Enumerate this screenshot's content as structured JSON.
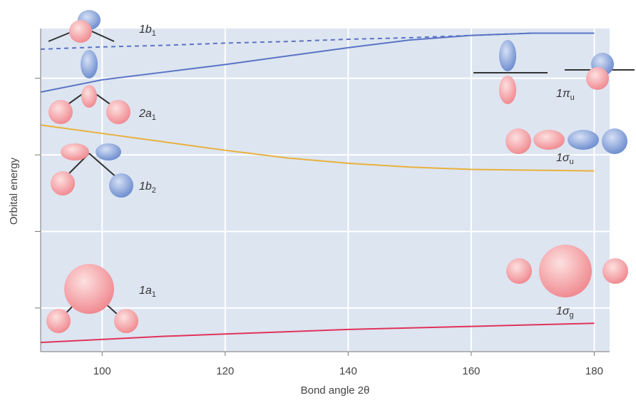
{
  "chart_data": {
    "type": "line",
    "x_label": "Bond angle 2θ",
    "y_label": "Orbital energy",
    "x": [
      90,
      100,
      110,
      120,
      130,
      140,
      150,
      160,
      170,
      180
    ],
    "xlim": [
      90,
      182.5
    ],
    "xticks": [
      100,
      120,
      140,
      160,
      180
    ],
    "ylim": [
      0.43,
      4.65
    ],
    "yticks": [
      1,
      2,
      3,
      4
    ],
    "grid": true,
    "series": [
      {
        "color": "#5b74c4",
        "dash": false,
        "values": [
          3.82,
          3.98,
          4.08,
          4.18,
          4.29,
          4.4,
          4.5,
          4.56,
          4.59,
          4.59
        ]
      },
      {
        "color": "#5b74c4",
        "dash": true,
        "values": [
          4.38,
          4.41,
          4.43,
          4.46,
          4.48,
          4.51,
          4.53,
          4.56,
          4.59,
          null
        ]
      },
      {
        "color": "#e8b13c",
        "dash": false,
        "values": [
          3.39,
          3.28,
          3.17,
          3.06,
          2.96,
          2.89,
          2.84,
          2.81,
          2.8,
          2.79
        ]
      },
      {
        "color": "#e0335a",
        "dash": false,
        "values": [
          0.55,
          0.59,
          0.63,
          0.66,
          0.69,
          0.72,
          0.74,
          0.76,
          0.78,
          0.8
        ]
      }
    ],
    "orbital_labels": [
      {
        "text": "1b",
        "sub": "1"
      },
      {
        "text": "2a",
        "sub": "1"
      },
      {
        "text": "1b",
        "sub": "2"
      },
      {
        "text": "1a",
        "sub": "1"
      },
      {
        "text": "1π",
        "sub": "u"
      },
      {
        "text": "1σ",
        "sub": "u"
      },
      {
        "text": "1σ",
        "sub": "g"
      }
    ]
  }
}
